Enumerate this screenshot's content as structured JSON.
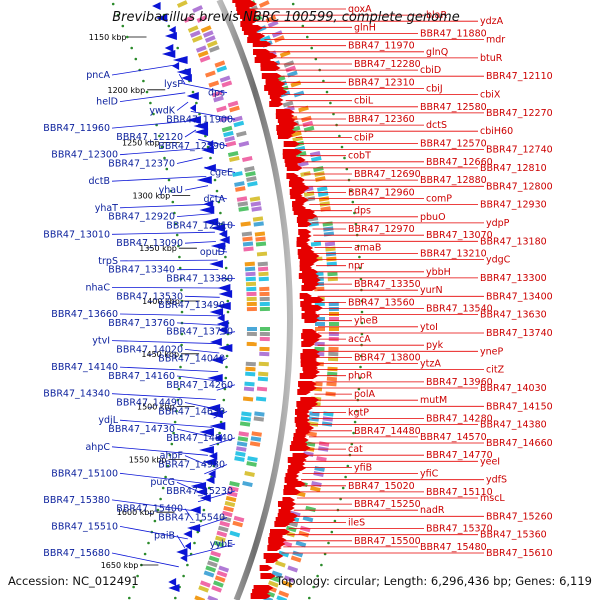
{
  "title": "Brevibacillus brevis NBRC 100599, complete genome",
  "footer": {
    "accession": "Accession: NC_012491",
    "summary": "Topology: circular; Length: 6,296,436 bp; Genes: 6,119"
  },
  "kbp_ticks": [
    "1150 kbp",
    "1200 kbp",
    "1250 kbp",
    "1300 kbp",
    "1350 kbp",
    "1400 kbp",
    "1450 kbp",
    "1500 kbp",
    "1550 kbp",
    "1600 kbp",
    "1650 kbp"
  ],
  "left_labels": [
    "pncA",
    "lysP",
    "dps",
    "helD",
    "ywdK",
    "BBR47_11900",
    "BBR47_11960",
    "BBR47_12120",
    "BBR47_12290",
    "BBR47_12300",
    "BBR47_12370",
    "cgeE",
    "dctB",
    "yhaU",
    "dctA",
    "yhaT",
    "BBR47_12920",
    "BBR47_12910",
    "BBR47_13010",
    "BBR47_13090",
    "opuD",
    "trpS",
    "BBR47_13340",
    "BBR47_13380",
    "nhaC",
    "BBR47_13530",
    "BBR47_13490",
    "BBR47_13660",
    "BBR47_13760",
    "BBR47_13730",
    "ytvI",
    "BBR47_14020",
    "BBR47_14040",
    "BBR47_14140",
    "BBR47_14160",
    "BBR47_14260",
    "BBR47_14340",
    "BBR47_14490",
    "BBR47_14630",
    "ydjL",
    "BBR47_14730",
    "BBR47_14840",
    "ahpC",
    "ahpF",
    "BBR47_14980",
    "BBR47_15100",
    "pucG",
    "BBR47_15230",
    "BBR47_15380",
    "BBR47_15400",
    "BBR47_15540",
    "BBR47_15510",
    "paiB",
    "yybE",
    "BBR47_15680"
  ],
  "right_labels": [
    "qoxA",
    "blaR",
    "ydzA",
    "glnH",
    "BBR47_11880",
    "mdr",
    "BBR47_11970",
    "glnQ",
    "btuR",
    "BBR47_12280",
    "cbiD",
    "BBR47_12110",
    "BBR47_12310",
    "cbiJ",
    "cbiX",
    "cbiL",
    "BBR47_12580",
    "BBR47_12270",
    "BBR47_12360",
    "dctS",
    "cbiH60",
    "cbiP",
    "BBR47_12570",
    "BBR47_12740",
    "cobT",
    "BBR47_12660",
    "BBR47_12810",
    "BBR47_12690",
    "BBR47_12880",
    "BBR47_12800",
    "BBR47_12960",
    "comP",
    "BBR47_12930",
    "dps",
    "pbuO",
    "ydpP",
    "BBR47_12970",
    "BBR47_13070",
    "BBR47_13180",
    "amaB",
    "BBR47_13210",
    "ydgC",
    "npr",
    "ybbH",
    "BBR47_13300",
    "BBR47_13350",
    "yurN",
    "BBR47_13400",
    "BBR47_13560",
    "BBR47_13540",
    "BBR47_13630",
    "yheB",
    "ytoI",
    "BBR47_13740",
    "accA",
    "pyk",
    "yneP",
    "BBR47_13800",
    "ytzA",
    "citZ",
    "phoR",
    "BBR47_13960",
    "BBR47_14030",
    "polA",
    "mutM",
    "BBR47_14150",
    "kgtP",
    "BBR47_14280",
    "BBR47_14380",
    "BBR47_14480",
    "BBR47_14570",
    "BBR47_14660",
    "cat",
    "BBR47_14770",
    "yeeI",
    "yfiB",
    "yfiC",
    "ydfS",
    "BBR47_15020",
    "BBR47_15110",
    "mscL",
    "BBR47_15250",
    "nadR",
    "BBR47_15260",
    "ileS",
    "BBR47_15370",
    "BBR47_15360",
    "BBR47_15500",
    "BBR47_15480",
    "BBR47_15610"
  ],
  "colors": {
    "forward_cds": "#e60000",
    "reverse_cds": "#0a14d6",
    "label_blue": "#0a1f9c",
    "label_red": "#cc0000",
    "backbone": "#888888",
    "tick_dots": "#2a8a2a"
  }
}
